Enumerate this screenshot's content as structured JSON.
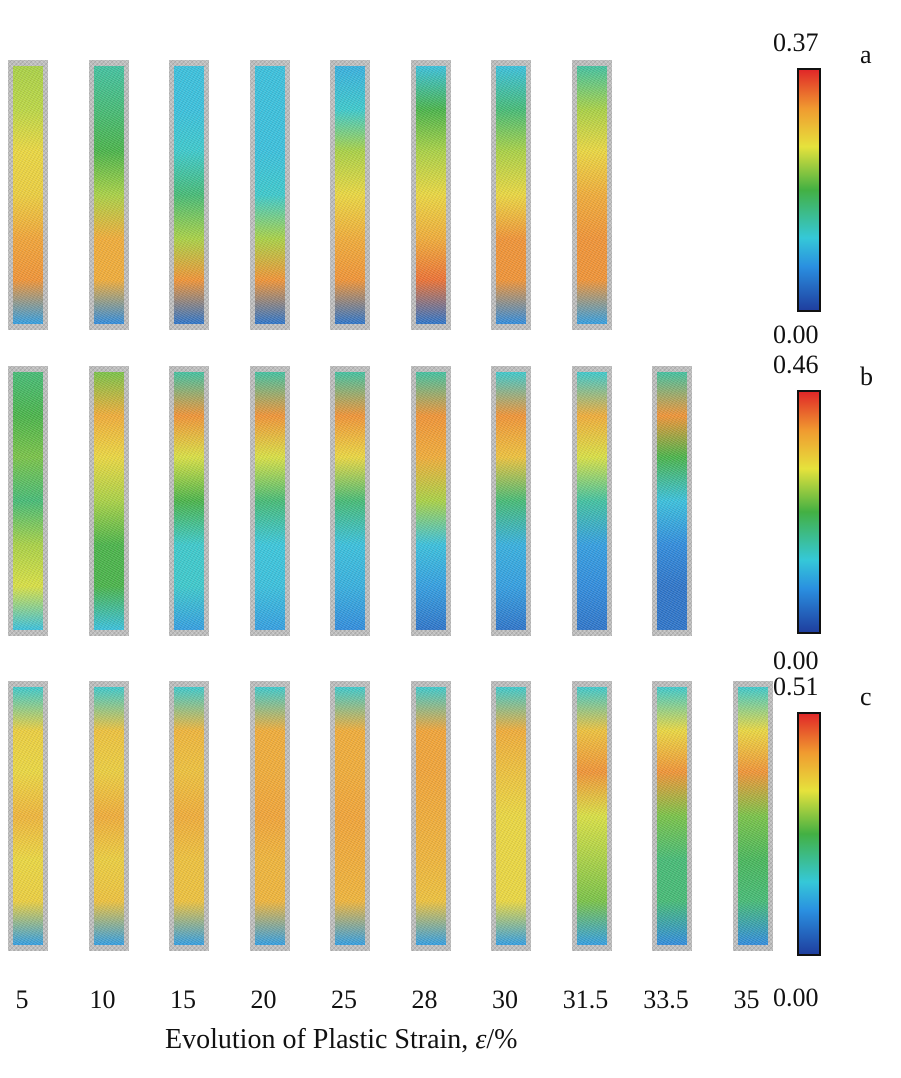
{
  "colormap": [
    "#1f3f9f",
    "#2a8fe0",
    "#35c8d8",
    "#43b043",
    "#e6e23c",
    "#f09a30",
    "#e02828"
  ],
  "panels": [
    {
      "label": "a",
      "max": "0.37",
      "min": "0.00",
      "specimens": [
        [
          0.6,
          0.62,
          0.7,
          0.72,
          0.82,
          0.85,
          0.2
        ],
        [
          0.4,
          0.45,
          0.5,
          0.6,
          0.8,
          0.8,
          0.15
        ],
        [
          0.3,
          0.3,
          0.35,
          0.45,
          0.6,
          0.85,
          0.1
        ],
        [
          0.3,
          0.3,
          0.3,
          0.35,
          0.6,
          0.85,
          0.1
        ],
        [
          0.25,
          0.35,
          0.6,
          0.7,
          0.8,
          0.85,
          0.1
        ],
        [
          0.3,
          0.5,
          0.6,
          0.7,
          0.8,
          0.9,
          0.1
        ],
        [
          0.3,
          0.45,
          0.6,
          0.7,
          0.85,
          0.85,
          0.15
        ],
        [
          0.4,
          0.6,
          0.7,
          0.8,
          0.85,
          0.85,
          0.2
        ]
      ]
    },
    {
      "label": "b",
      "max": "0.46",
      "min": "0.00",
      "specimens": [
        [
          0.45,
          0.5,
          0.55,
          0.45,
          0.6,
          0.65,
          0.3
        ],
        [
          0.55,
          0.8,
          0.7,
          0.6,
          0.5,
          0.5,
          0.3
        ],
        [
          0.4,
          0.85,
          0.65,
          0.5,
          0.35,
          0.35,
          0.2
        ],
        [
          0.4,
          0.85,
          0.65,
          0.45,
          0.32,
          0.3,
          0.2
        ],
        [
          0.4,
          0.85,
          0.7,
          0.45,
          0.3,
          0.25,
          0.15
        ],
        [
          0.4,
          0.85,
          0.8,
          0.6,
          0.3,
          0.2,
          0.1
        ],
        [
          0.35,
          0.85,
          0.75,
          0.45,
          0.25,
          0.2,
          0.1
        ],
        [
          0.35,
          0.8,
          0.65,
          0.4,
          0.2,
          0.15,
          0.1
        ],
        [
          0.4,
          0.85,
          0.5,
          0.3,
          0.15,
          0.1,
          0.1
        ]
      ]
    },
    {
      "label": "c",
      "max": "0.51",
      "min": "0.00",
      "specimens": [
        [
          0.35,
          0.72,
          0.7,
          0.78,
          0.7,
          0.72,
          0.2
        ],
        [
          0.35,
          0.75,
          0.72,
          0.8,
          0.72,
          0.75,
          0.2
        ],
        [
          0.35,
          0.78,
          0.75,
          0.8,
          0.75,
          0.75,
          0.2
        ],
        [
          0.35,
          0.8,
          0.8,
          0.82,
          0.78,
          0.78,
          0.2
        ],
        [
          0.35,
          0.8,
          0.8,
          0.82,
          0.8,
          0.78,
          0.2
        ],
        [
          0.35,
          0.82,
          0.82,
          0.8,
          0.78,
          0.75,
          0.2
        ],
        [
          0.35,
          0.8,
          0.75,
          0.7,
          0.7,
          0.7,
          0.2
        ],
        [
          0.35,
          0.75,
          0.85,
          0.65,
          0.6,
          0.55,
          0.2
        ],
        [
          0.35,
          0.7,
          0.85,
          0.55,
          0.45,
          0.45,
          0.15
        ],
        [
          0.35,
          0.7,
          0.85,
          0.55,
          0.48,
          0.45,
          0.15
        ]
      ]
    }
  ],
  "strain_levels": [
    "5",
    "10",
    "15",
    "20",
    "25",
    "28",
    "30",
    "31.5",
    "33.5",
    "35"
  ],
  "xlabel": "Evolution of Plastic Strain, ",
  "xlabel_symbol": "ε",
  "xlabel_unit": "/%"
}
